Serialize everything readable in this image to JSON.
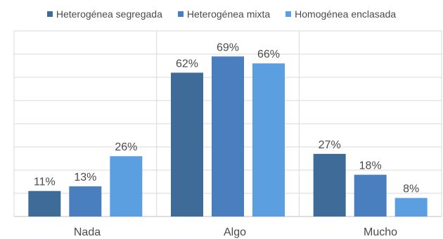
{
  "chart_data": {
    "type": "bar",
    "title": "",
    "xlabel": "",
    "ylabel": "",
    "categories": [
      "Nada",
      "Algo",
      "Mucho"
    ],
    "series": [
      {
        "name": "Heterogénea segregada",
        "values": [
          11,
          62,
          27
        ],
        "labels": [
          "11%",
          "62%",
          "27%"
        ],
        "color": "#3e6b98"
      },
      {
        "name": "Heterogénea mixta",
        "values": [
          13,
          69,
          18
        ],
        "labels": [
          "13%",
          "69%",
          "18%"
        ],
        "color": "#4a7fbf"
      },
      {
        "name": "Homogénea enclasada",
        "values": [
          26,
          66,
          8
        ],
        "labels": [
          "26%",
          "66%",
          "8%"
        ],
        "color": "#5b9fe0"
      }
    ],
    "ylim": [
      0,
      80
    ],
    "grid": true,
    "legend_position": "top"
  }
}
